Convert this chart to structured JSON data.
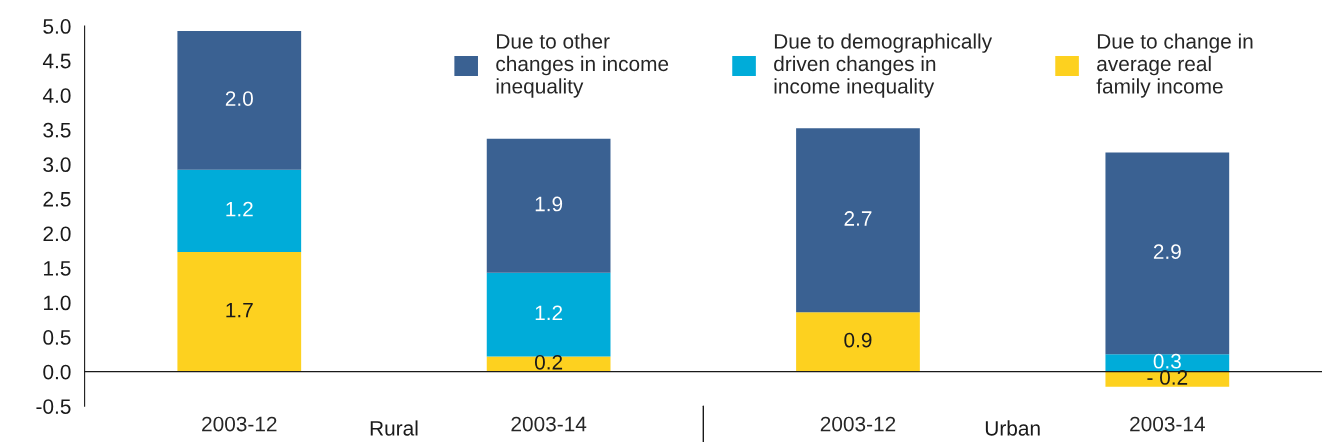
{
  "chart_data": {
    "type": "bar",
    "stacked": true,
    "categories": [
      "2003-12",
      "2003-14",
      "2003-12",
      "2003-14"
    ],
    "series": [
      {
        "name": "Due to change in\naverage real\nfamily income",
        "color": "#fdd11f",
        "values": [
          1.73,
          0.22,
          0.86,
          -0.22
        ],
        "value_labels": [
          "1.7",
          "0.2",
          "0.9",
          "- 0.2"
        ]
      },
      {
        "name": "Due to demographically\ndriven changes in\nincome inequality",
        "color": "#00acd9",
        "values": [
          1.19,
          1.21,
          null,
          0.25
        ],
        "value_labels": [
          "1.2",
          "1.2",
          null,
          "0.3"
        ]
      },
      {
        "name": "Due to other\nchanges in income\ninequality",
        "color": "#3a6192",
        "values": [
          2.01,
          1.94,
          2.66,
          2.92
        ],
        "value_labels": [
          "2.0",
          "1.9",
          "2.7",
          "2.9"
        ]
      }
    ],
    "ylim": [
      -0.5,
      5.0
    ],
    "yticks": [
      {
        "value": -0.5,
        "label": "-0.5"
      },
      {
        "value": 0,
        "label": "0.0"
      },
      {
        "value": 0.5,
        "label": "0.5"
      },
      {
        "value": 1,
        "label": "1.0"
      },
      {
        "value": 1.5,
        "label": "1.5"
      },
      {
        "value": 2,
        "label": "2.0"
      },
      {
        "value": 2.5,
        "label": "2.5"
      },
      {
        "value": 3,
        "label": "3.0"
      },
      {
        "value": 3.5,
        "label": "3.5"
      },
      {
        "value": 4,
        "label": "4.0"
      },
      {
        "value": 4.5,
        "label": "4.5"
      },
      {
        "value": 5,
        "label": "5.0"
      }
    ],
    "grid": false,
    "legend": "top right",
    "annotations": [
      "Rural",
      "Urban"
    ]
  }
}
